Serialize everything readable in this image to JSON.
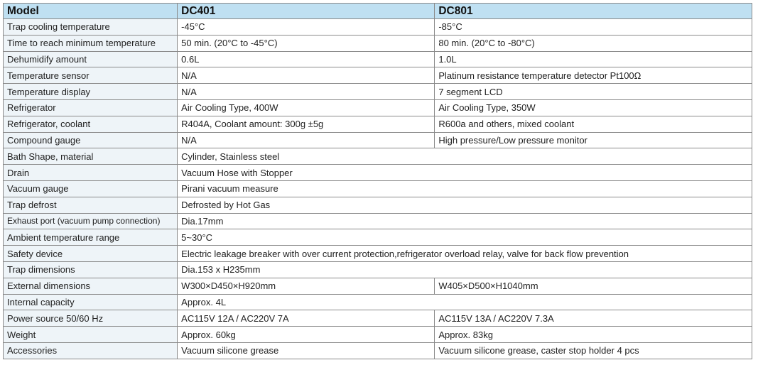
{
  "header": {
    "model": "Model",
    "col1": "DC401",
    "col2": "DC801"
  },
  "rows": [
    {
      "label": "Trap cooling temperature",
      "v1": "-45°C",
      "v2": "-85°C"
    },
    {
      "label": "Time to reach minimum temperature",
      "v1": "50 min. (20°C to -45°C)",
      "v2": "80 min. (20°C to -80°C)"
    },
    {
      "label": "Dehumidify amount",
      "v1": "0.6L",
      "v2": "1.0L"
    },
    {
      "label": "Temperature sensor",
      "v1": "N/A",
      "v2": "Platinum resistance temperature detector  Pt100Ω"
    },
    {
      "label": "Temperature display",
      "v1": "N/A",
      "v2": "7 segment LCD"
    },
    {
      "label": "Refrigerator",
      "v1": "Air Cooling Type, 400W",
      "v2": "Air Cooling Type, 350W"
    },
    {
      "label": "Refrigerator, coolant",
      "v1": "R404A, Coolant amount: 300g ±5g",
      "v2": "R600a and others, mixed coolant"
    },
    {
      "label": "Compound gauge",
      "v1": "N/A",
      "v2": "High pressure/Low pressure monitor"
    },
    {
      "label": "Bath Shape, material",
      "v1": "Cylinder, Stainless steel"
    },
    {
      "label": "Drain",
      "v1": "Vacuum Hose with Stopper"
    },
    {
      "label": "Vacuum gauge",
      "v1": "Pirani vacuum measure"
    },
    {
      "label": "Trap defrost",
      "v1": "Defrosted by Hot Gas"
    },
    {
      "label": "Exhaust port (vacuum pump connection)",
      "v1": "Dia.17mm",
      "small": true
    },
    {
      "label": "Ambient temperature range",
      "v1": "5~30°C"
    },
    {
      "label": "Safety device",
      "v1": "Electric leakage breaker with over current protection,refrigerator overload relay, valve for back flow prevention"
    },
    {
      "label": "Trap dimensions",
      "v1": "Dia.153 x H235mm"
    },
    {
      "label": "External dimensions",
      "v1": "W300×D450×H920mm",
      "v2": "W405×D500×H1040mm"
    },
    {
      "label": "Internal capacity",
      "v1": "Approx. 4L"
    },
    {
      "label": "Power source 50/60 Hz",
      "v1": "AC115V 12A / AC220V 7A",
      "v2": "AC115V 13A / AC220V 7.3A"
    },
    {
      "label": "Weight",
      "v1": "Approx. 60kg",
      "v2": "Approx. 83kg"
    },
    {
      "label": "Accessories",
      "v1": "Vacuum silicone grease",
      "v2": "Vacuum silicone grease, caster stop holder 4 pcs"
    }
  ]
}
